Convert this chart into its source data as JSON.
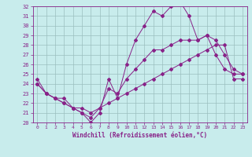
{
  "bg_color": "#c8ecec",
  "grid_color": "#9bbfbf",
  "line_color": "#882288",
  "xlabel": "Windchill (Refroidissement éolien,°C)",
  "xlim": [
    -0.5,
    23.5
  ],
  "ylim": [
    20,
    32
  ],
  "xticks": [
    0,
    1,
    2,
    3,
    4,
    5,
    6,
    7,
    8,
    9,
    10,
    11,
    12,
    13,
    14,
    15,
    16,
    17,
    18,
    19,
    20,
    21,
    22,
    23
  ],
  "yticks": [
    20,
    21,
    22,
    23,
    24,
    25,
    26,
    27,
    28,
    29,
    30,
    31,
    32
  ],
  "line1_x": [
    0,
    1,
    2,
    3,
    4,
    5,
    6,
    7,
    8,
    9,
    10,
    11,
    12,
    13,
    14,
    15,
    16,
    17,
    18,
    19,
    20,
    21,
    22,
    23
  ],
  "line1_y": [
    24.5,
    23.0,
    22.5,
    22.0,
    21.5,
    21.0,
    20.0,
    21.0,
    24.5,
    22.5,
    26.0,
    28.5,
    30.0,
    31.5,
    31.0,
    32.0,
    32.5,
    31.0,
    28.5,
    29.0,
    27.0,
    25.5,
    25.0,
    25.0
  ],
  "line2_x": [
    0,
    1,
    2,
    3,
    4,
    5,
    6,
    7,
    8,
    9,
    10,
    11,
    12,
    13,
    14,
    15,
    16,
    17,
    18,
    19,
    20,
    21,
    22,
    23
  ],
  "line2_y": [
    24.0,
    23.0,
    22.5,
    22.5,
    21.5,
    21.5,
    21.0,
    21.5,
    23.5,
    23.0,
    24.5,
    25.5,
    26.5,
    27.5,
    27.5,
    28.0,
    28.5,
    28.5,
    28.5,
    29.0,
    28.5,
    27.0,
    25.5,
    25.0
  ],
  "line3_x": [
    0,
    1,
    2,
    3,
    4,
    5,
    6,
    7,
    8,
    9,
    10,
    11,
    12,
    13,
    14,
    15,
    16,
    17,
    18,
    19,
    20,
    21,
    22,
    23
  ],
  "line3_y": [
    24.0,
    23.0,
    22.5,
    22.0,
    21.5,
    21.0,
    20.5,
    21.5,
    22.0,
    22.5,
    23.0,
    23.5,
    24.0,
    24.5,
    25.0,
    25.5,
    26.0,
    26.5,
    27.0,
    27.5,
    28.0,
    28.0,
    24.5,
    24.5
  ]
}
